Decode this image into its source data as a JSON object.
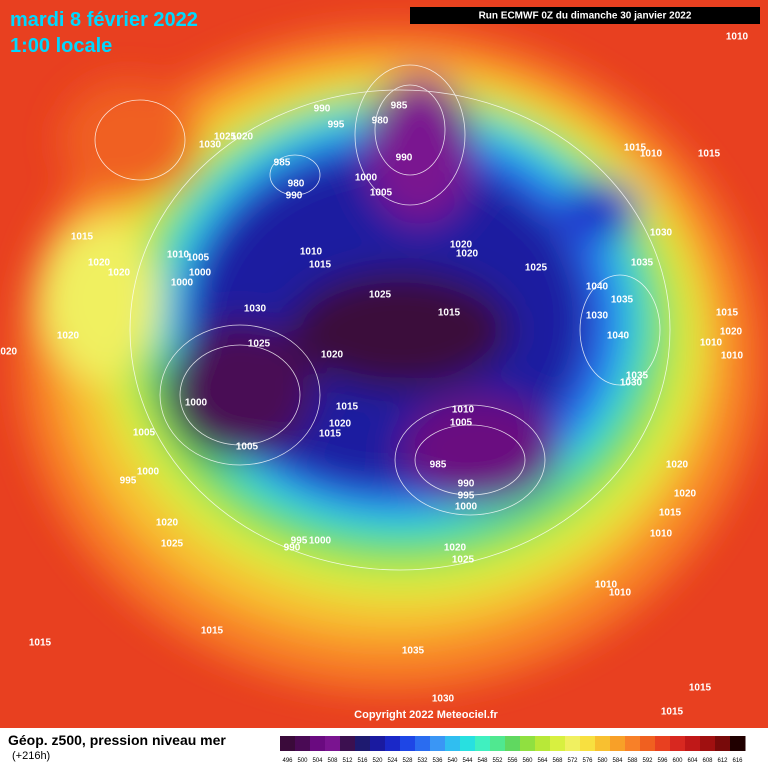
{
  "header": {
    "date": "mardi 8 février 2022",
    "time": "1:00 locale",
    "run": "Run ECMWF 0Z du dimanche 30 janvier 2022"
  },
  "copyright": "Copyright 2022 Meteociel.fr",
  "footer": {
    "title": "Géop. z500, pression niveau mer",
    "lead": "(+216h)"
  },
  "colorbar": {
    "labels": [
      496,
      500,
      504,
      508,
      512,
      516,
      520,
      524,
      528,
      532,
      536,
      540,
      544,
      548,
      552,
      556,
      560,
      564,
      568,
      572,
      576,
      580,
      584,
      588,
      592,
      596,
      600,
      604,
      608,
      612,
      616
    ],
    "colors": [
      "#3a0a3a",
      "#4a0a55",
      "#6a0a80",
      "#7a1490",
      "#3c1050",
      "#1e1a70",
      "#1a1aa0",
      "#1a28c8",
      "#1e46e6",
      "#2a6cf0",
      "#3a96f5",
      "#30bef0",
      "#28e0e0",
      "#40f0c0",
      "#50e890",
      "#60d860",
      "#90e040",
      "#b8e838",
      "#d8f040",
      "#f0f060",
      "#f8e040",
      "#f8c030",
      "#f8a028",
      "#f88028",
      "#f06020",
      "#e84020",
      "#d82820",
      "#c01818",
      "#a01010",
      "#780a0a",
      "#200000"
    ]
  },
  "isobars": [
    "990",
    "995",
    "985",
    "980",
    "990",
    "985",
    "980",
    "990",
    "1000",
    "1005",
    "1030",
    "1025",
    "1020",
    "1015",
    "1020",
    "1020",
    "1010",
    "1005",
    "1000",
    "1000",
    "1010",
    "1015",
    "1020",
    "1020",
    "1025",
    "1025",
    "1030",
    "1025",
    "1020",
    "1020",
    "1020",
    "1015",
    "1000",
    "1005",
    "1005",
    "1015",
    "1020",
    "1015",
    "1010",
    "1005",
    "985",
    "990",
    "995",
    "1000",
    "1000",
    "995",
    "1020",
    "1025",
    "990",
    "995",
    "1000",
    "1020",
    "1025",
    "1015",
    "1015",
    "1035",
    "1030",
    "1015",
    "1015",
    "1010",
    "1010",
    "1010",
    "1015",
    "1020",
    "1020",
    "1030",
    "1035",
    "1040",
    "1030",
    "1035",
    "1040",
    "1035",
    "1030",
    "1015",
    "1010",
    "1015",
    "1010",
    "1015",
    "1020",
    "1010",
    "1010"
  ]
}
